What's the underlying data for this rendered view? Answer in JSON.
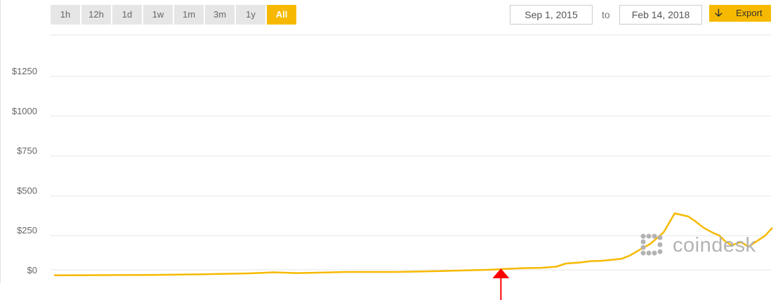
{
  "toolbar": {
    "ranges": [
      "1h",
      "12h",
      "1d",
      "1w",
      "1m",
      "3m",
      "1y",
      "All"
    ],
    "active_range": "All",
    "start_date": "Sep 1, 2015",
    "to_label": "to",
    "end_date": "Feb 14, 2018",
    "export_label": "Export",
    "export_icon": "down-arrow-icon"
  },
  "logo": {
    "text": "coindesk",
    "color": "#b3b3b3"
  },
  "colors": {
    "line": "#f7b900",
    "grid": "#e6e6e6",
    "annotation": "#ff0000",
    "active": "#f7b900"
  },
  "chart_data": {
    "type": "line",
    "x_start": "2015-09-01",
    "x_end": "2018-02-14",
    "ylim": [
      0,
      1250
    ],
    "y_ticks": [
      "$0",
      "$250",
      "$500",
      "$750",
      "$1000",
      "$1250"
    ],
    "y_tick_values": [
      0,
      250,
      500,
      750,
      1000,
      1250
    ],
    "grid": true,
    "annotation": {
      "type": "arrow",
      "x": "2017-03-12",
      "color": "#ff0000"
    },
    "series": [
      {
        "color": "#f7b900",
        "x": [
          "2015-09-01",
          "2015-11-01",
          "2016-01-01",
          "2016-03-01",
          "2016-05-01",
          "2016-06-01",
          "2016-07-01",
          "2016-09-01",
          "2016-11-01",
          "2017-01-01",
          "2017-03-01",
          "2017-03-20",
          "2017-04-10",
          "2017-05-01",
          "2017-05-20",
          "2017-06-01",
          "2017-06-20",
          "2017-07-01",
          "2017-07-15",
          "2017-08-01",
          "2017-08-10",
          "2017-08-20",
          "2017-09-01",
          "2017-09-15",
          "2017-10-01",
          "2017-10-15",
          "2017-11-01",
          "2017-11-10",
          "2017-11-20",
          "2017-12-01",
          "2017-12-10",
          "2017-12-17",
          "2017-12-25",
          "2018-01-06",
          "2018-01-15",
          "2018-02-05",
          "2018-02-14"
        ],
        "y": [
          1,
          2,
          3,
          7,
          13,
          20,
          15,
          22,
          22,
          28,
          36,
          42,
          46,
          48,
          55,
          75,
          82,
          90,
          92,
          100,
          105,
          125,
          160,
          200,
          270,
          390,
          370,
          340,
          300,
          270,
          250,
          215,
          190,
          210,
          180,
          250,
          300
        ]
      }
    ]
  }
}
